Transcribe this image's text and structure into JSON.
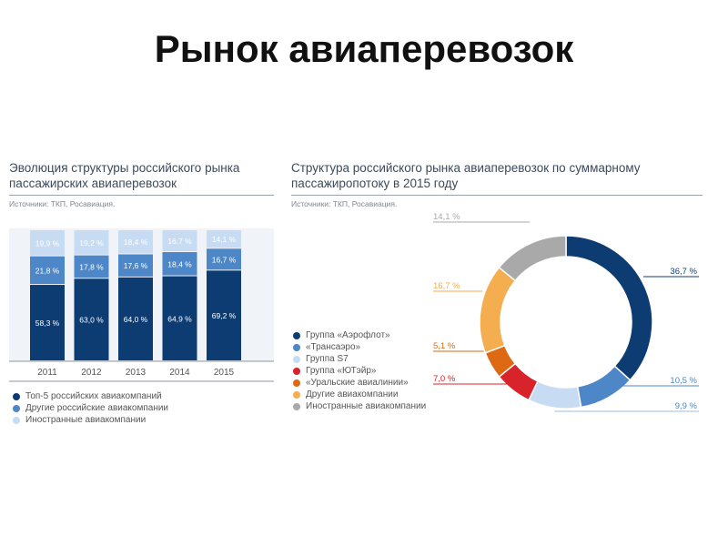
{
  "page": {
    "title": "Рынок авиаперевозок"
  },
  "left_panel": {
    "title_line1": "Эволюция структуры российского рынка",
    "title_line2": "пассажирских авиаперевозок",
    "source": "Источники: ТКП, Росавиация."
  },
  "right_panel": {
    "title_line1": "Структура российского рынка авиаперевозок по суммарному",
    "title_line2": "пассажиропотоку в 2015 году",
    "source": "Источники: ТКП, Росавиация."
  },
  "colors": {
    "dark_blue": "#0d3c73",
    "mid_blue": "#4d87c7",
    "light_blue": "#c7dcf2",
    "red": "#d8232a",
    "orange": "#dd6a12",
    "light_orange": "#f4ad4f",
    "gray": "#a9a9a9"
  },
  "chart_data": [
    {
      "type": "bar",
      "stacked": true,
      "categories": [
        "2011",
        "2012",
        "2013",
        "2014",
        "2015"
      ],
      "series": [
        {
          "name": "Топ-5 российских авиакомпаний",
          "values": [
            58.3,
            63.0,
            64.0,
            64.9,
            69.2
          ],
          "labels": [
            "58,3 %",
            "63,0 %",
            "64,0 %",
            "64,9 %",
            "69,2 %"
          ],
          "color": "#0d3c73"
        },
        {
          "name": "Другие российские авиакомпании",
          "values": [
            21.8,
            17.8,
            17.6,
            18.4,
            16.7
          ],
          "labels": [
            "21,8 %",
            "17,8 %",
            "17,6 %",
            "18,4 %",
            "16,7 %"
          ],
          "color": "#4d87c7"
        },
        {
          "name": "Иностранные авиакомпании",
          "values": [
            19.9,
            19.2,
            18.4,
            16.7,
            14.1
          ],
          "labels": [
            "19,9 %",
            "19,2 %",
            "18,4 %",
            "16,7 %",
            "14,1 %"
          ],
          "color": "#c7dcf2"
        }
      ],
      "ylim": [
        0,
        100
      ],
      "legend_position": "bottom-left"
    },
    {
      "type": "pie",
      "donut": true,
      "slices": [
        {
          "name": "Группа «Аэрофлот»",
          "value": 36.7,
          "label": "36,7 %",
          "color": "#0d3c73"
        },
        {
          "name": "«Трансаэро»",
          "value": 10.5,
          "label": "10,5 %",
          "color": "#4d87c7"
        },
        {
          "name": "Группа S7",
          "value": 9.9,
          "label": "9,9 %",
          "color": "#c7dcf2"
        },
        {
          "name": "Группа «ЮТэйр»",
          "value": 7.0,
          "label": "7,0 %",
          "color": "#d8232a"
        },
        {
          "name": "«Уральские авиалинии»",
          "value": 5.1,
          "label": "5,1 %",
          "color": "#dd6a12"
        },
        {
          "name": "Другие авиакомпании",
          "value": 16.7,
          "label": "16,7 %",
          "color": "#f4ad4f"
        },
        {
          "name": "Иностранные авиакомпании",
          "value": 14.1,
          "label": "14,1 %",
          "color": "#a9a9a9"
        }
      ],
      "legend_position": "left"
    }
  ]
}
